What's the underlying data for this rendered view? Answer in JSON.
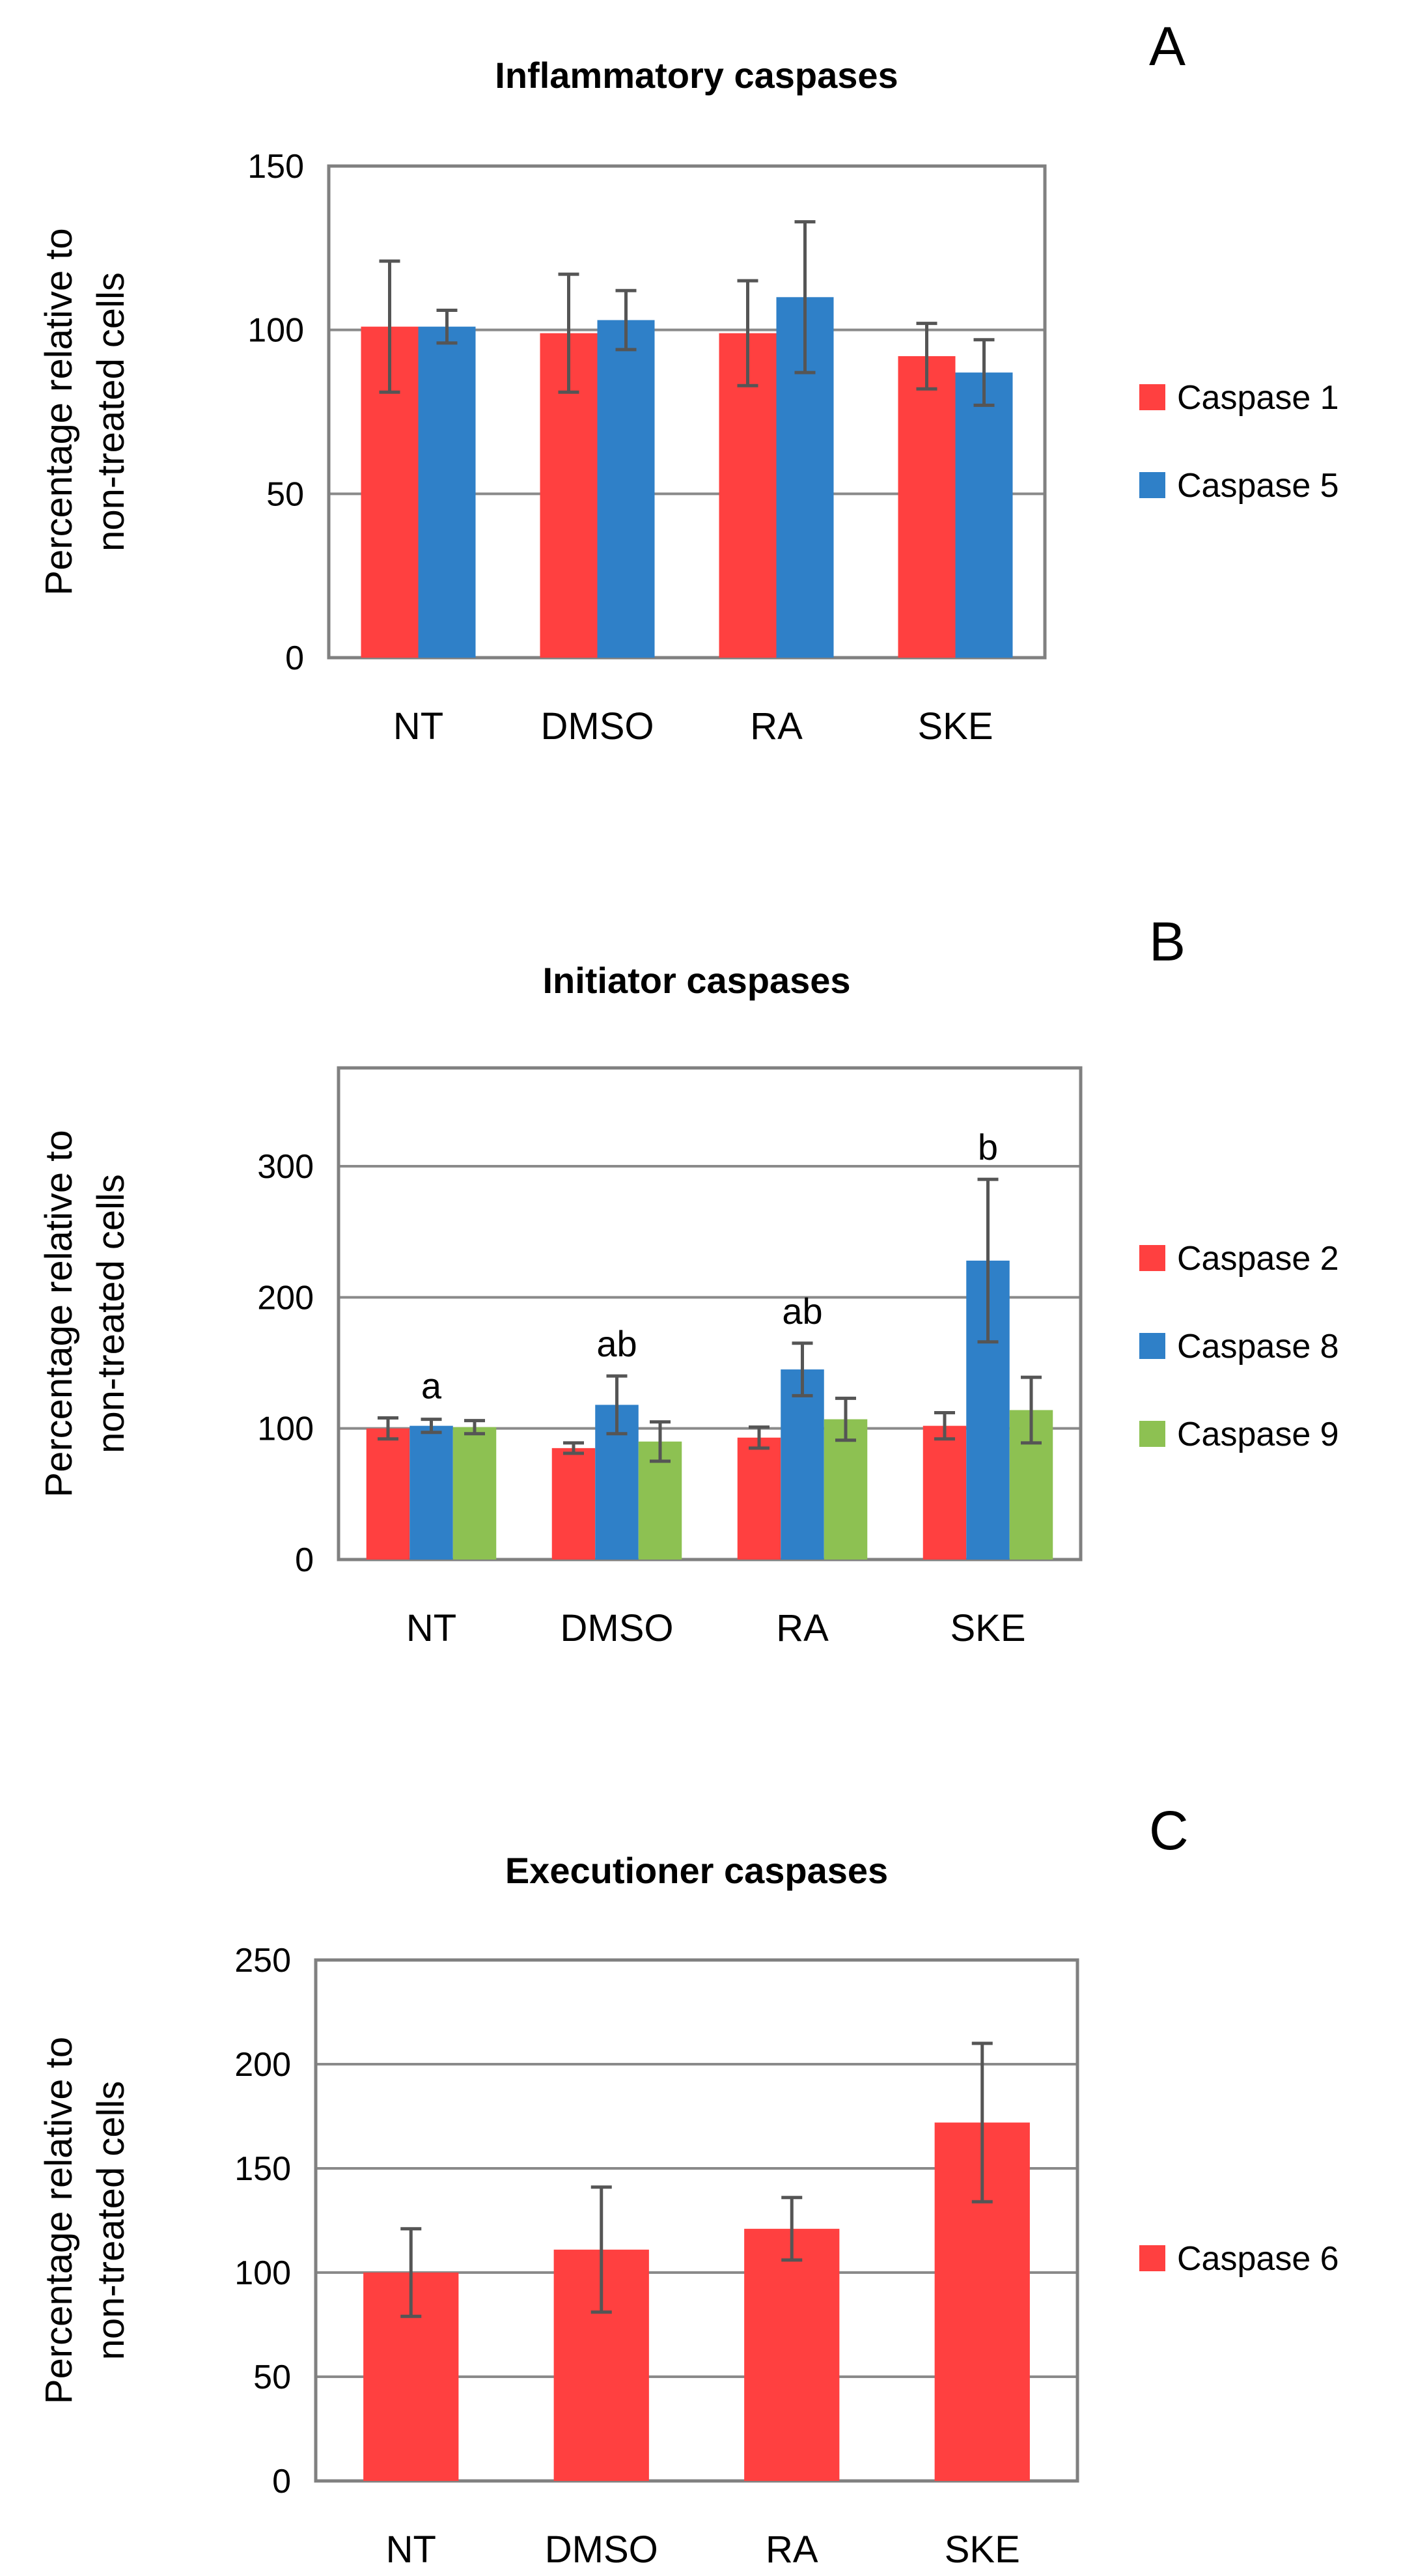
{
  "chart_data": [
    {
      "panel": "A",
      "type": "bar",
      "title": "Inflammatory caspases",
      "ylabel_lines": [
        "Percentage relative to",
        "non-treated cells"
      ],
      "xlabel": "",
      "categories": [
        "NT",
        "DMSO",
        "RA",
        "SKE"
      ],
      "ylim": [
        0,
        150
      ],
      "yticks": [
        0,
        50,
        100,
        150
      ],
      "grid": true,
      "legend_position": "right",
      "series": [
        {
          "name": "Caspase 1",
          "color": "#FF4040",
          "values": [
            101,
            99,
            99,
            92
          ],
          "errors": [
            20,
            18,
            16,
            10
          ]
        },
        {
          "name": "Caspase 5",
          "color": "#2F80C8",
          "values": [
            101,
            103,
            110,
            87
          ],
          "errors": [
            5,
            9,
            23,
            10
          ]
        }
      ],
      "annotations": []
    },
    {
      "panel": "B",
      "type": "bar",
      "title": "Initiator caspases",
      "ylabel_lines": [
        "Percentage relative to",
        "non-treated cells"
      ],
      "xlabel": "",
      "categories": [
        "NT",
        "DMSO",
        "RA",
        "SKE"
      ],
      "ylim": [
        0,
        375
      ],
      "yticks": [
        0,
        100,
        200,
        300
      ],
      "grid": true,
      "legend_position": "right",
      "series": [
        {
          "name": "Caspase 2",
          "color": "#FF4040",
          "values": [
            100,
            85,
            93,
            102
          ],
          "errors": [
            8,
            4,
            8,
            10
          ]
        },
        {
          "name": "Caspase 8",
          "color": "#2F80C8",
          "values": [
            102,
            118,
            145,
            228
          ],
          "errors": [
            5,
            22,
            20,
            62
          ]
        },
        {
          "name": "Caspase 9",
          "color": "#8DC152",
          "values": [
            101,
            90,
            107,
            114
          ],
          "errors": [
            5,
            15,
            16,
            25
          ]
        }
      ],
      "annotations": [
        "a",
        "ab",
        "ab",
        "b"
      ]
    },
    {
      "panel": "C",
      "type": "bar",
      "title": "Executioner caspases",
      "ylabel_lines": [
        "Percentage relative to",
        "non-treated cells"
      ],
      "xlabel": "",
      "categories": [
        "NT",
        "DMSO",
        "RA",
        "SKE"
      ],
      "ylim": [
        0,
        250
      ],
      "yticks": [
        0,
        50,
        100,
        150,
        200,
        250
      ],
      "grid": true,
      "legend_position": "right",
      "series": [
        {
          "name": "Caspase 6",
          "color": "#FF4040",
          "values": [
            100,
            111,
            121,
            172
          ],
          "errors": [
            21,
            30,
            15,
            38
          ]
        }
      ],
      "annotations": []
    }
  ]
}
